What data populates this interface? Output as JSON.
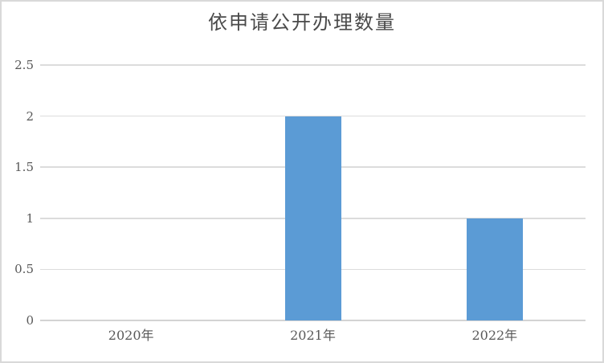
{
  "chart_data": {
    "type": "bar",
    "title": "依申请公开办理数量",
    "categories": [
      "2020年",
      "2021年",
      "2022年"
    ],
    "values": [
      0,
      2,
      1
    ],
    "xlabel": "",
    "ylabel": "",
    "ylim": [
      0,
      2.5
    ],
    "yticks": [
      0,
      0.5,
      1,
      1.5,
      2,
      2.5
    ],
    "grid": true,
    "legend": "none",
    "colors": {
      "bar": "#5B9BD5",
      "gridline": "#DCDCDC",
      "axis_line": "#D3D3D3",
      "tick_text": "#595959",
      "title_text": "#4A4A4A",
      "background": "#FFFFFF",
      "frame_border": "#D9D9D9"
    }
  }
}
